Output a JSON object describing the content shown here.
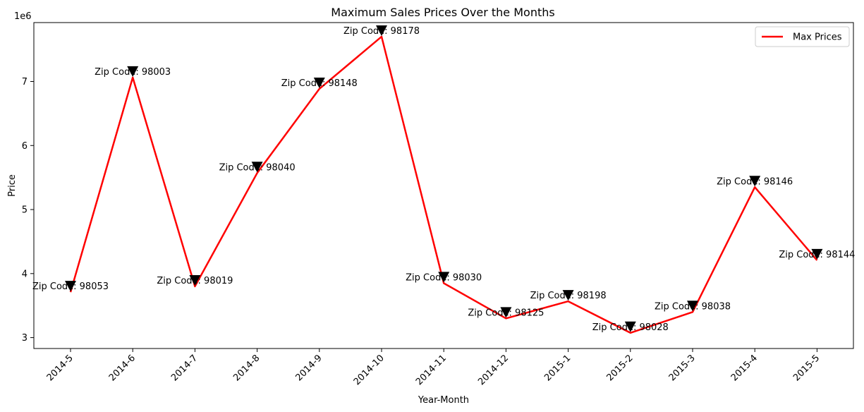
{
  "chart_data": {
    "type": "line",
    "title": "Maximum Sales Prices Over the Months",
    "xlabel": "Year-Month",
    "ylabel": "Price",
    "y_scale_label": "1e6",
    "categories": [
      "2014-5",
      "2014-6",
      "2014-7",
      "2014-8",
      "2014-9",
      "2014-10",
      "2014-11",
      "2014-12",
      "2015-1",
      "2015-2",
      "2015-3",
      "2015-4",
      "2015-5"
    ],
    "series": [
      {
        "name": "Max Prices",
        "color": "#ff0000",
        "values": [
          3710000,
          7062500,
          3800000,
          5570000,
          6885000,
          7700000,
          3850000,
          3300000,
          3567000,
          3075000,
          3400000,
          5350000,
          4208000
        ]
      }
    ],
    "annotations": [
      "Zip Code: 98053",
      "Zip Code: 98003",
      "Zip Code: 98019",
      "Zip Code: 98040",
      "Zip Code: 98148",
      "Zip Code: 98178",
      "Zip Code: 98030",
      "Zip Code: 98125",
      "Zip Code: 98198",
      "Zip Code: 98028",
      "Zip Code: 98038",
      "Zip Code: 98146",
      "Zip Code: 98144"
    ],
    "marker": "triangle-down",
    "marker_color": "#000000",
    "yticks": [
      3,
      4,
      5,
      6,
      7
    ],
    "ylim": [
      2830000,
      7920000
    ],
    "grid": false,
    "legend_position": "top-right"
  }
}
